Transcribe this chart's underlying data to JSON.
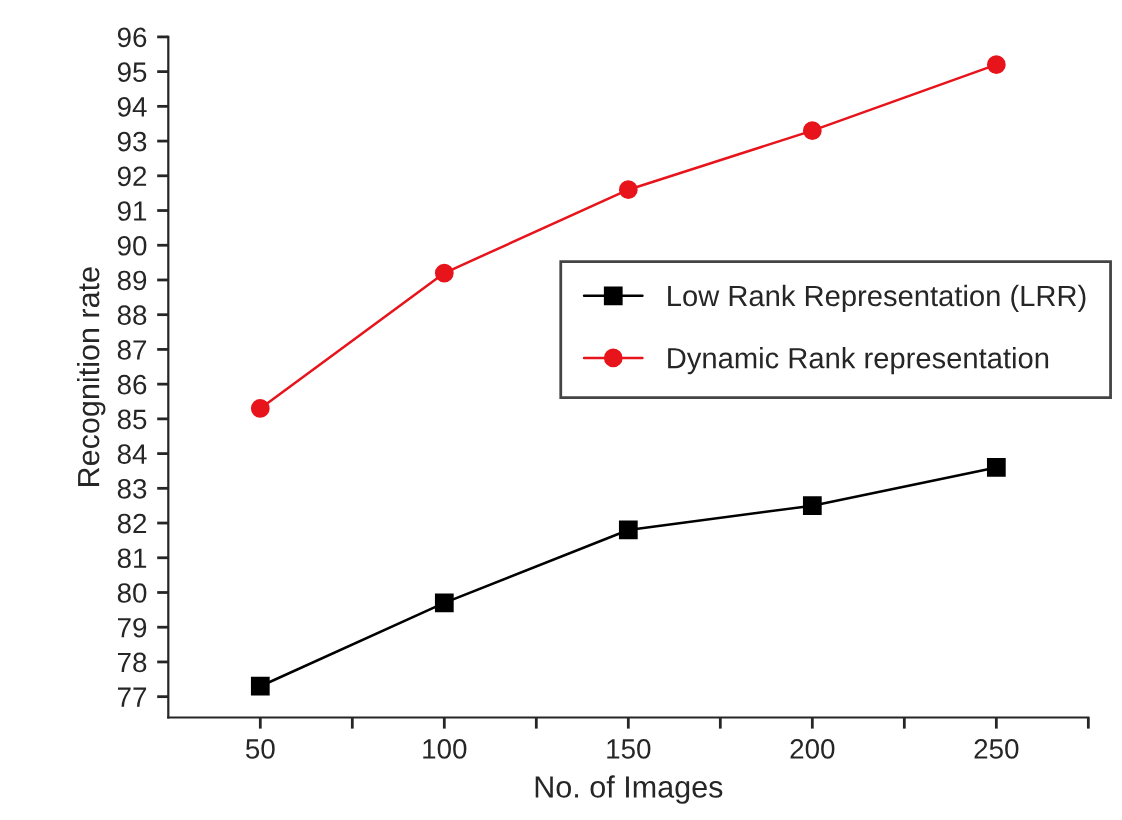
{
  "chart_data": {
    "type": "line",
    "xlabel": "No. of Images",
    "ylabel": "Recognition rate",
    "x": [
      50,
      100,
      150,
      200,
      250
    ],
    "series": [
      {
        "name": "Low Rank Representation (LRR)",
        "color": "#000000",
        "marker": "square",
        "values": [
          77.3,
          79.7,
          81.8,
          82.5,
          83.6
        ]
      },
      {
        "name": "Dynamic Rank representation",
        "color": "#e8141b",
        "marker": "circle",
        "values": [
          85.3,
          89.2,
          91.6,
          93.3,
          95.2
        ]
      }
    ],
    "xlim": [
      25,
      275
    ],
    "xticks": [
      50,
      {
        "value": 75,
        "label": null
      },
      100,
      {
        "value": 125,
        "label": null
      },
      150,
      {
        "value": 175,
        "label": null
      },
      200,
      {
        "value": 225,
        "label": null
      },
      250,
      {
        "value": 275,
        "label": null
      }
    ],
    "ylim": [
      76.4,
      96
    ],
    "yticks": [
      77,
      78,
      79,
      80,
      81,
      82,
      83,
      84,
      85,
      86,
      87,
      88,
      89,
      90,
      91,
      92,
      93,
      94,
      95,
      96
    ],
    "grid": false,
    "legend": "right",
    "line_style": "solid"
  }
}
